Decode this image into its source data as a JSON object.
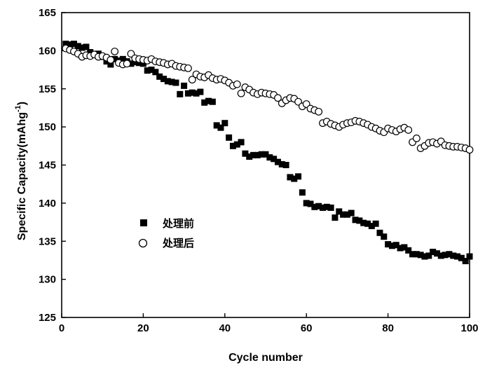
{
  "chart_data": {
    "type": "scatter",
    "xlabel": "Cycle number",
    "ylabel_main": "Specific Capacity(mAhg",
    "ylabel_sup": "-1",
    "ylabel_close": ")",
    "xlim": [
      0,
      100
    ],
    "ylim": [
      125,
      165
    ],
    "xticks": [
      0,
      20,
      40,
      60,
      80,
      100
    ],
    "yticks": [
      125,
      130,
      135,
      140,
      145,
      150,
      155,
      160,
      165
    ],
    "legend_position": "center-left",
    "series": [
      {
        "name": "处理前",
        "marker": "filled-square",
        "color": "#000000",
        "x": [
          1,
          2,
          3,
          4,
          5,
          6,
          7,
          8,
          9,
          10,
          11,
          12,
          13,
          14,
          15,
          16,
          17,
          18,
          19,
          20,
          21,
          22,
          23,
          24,
          25,
          26,
          27,
          28,
          29,
          30,
          31,
          32,
          33,
          34,
          35,
          36,
          37,
          38,
          39,
          40,
          41,
          42,
          43,
          44,
          45,
          46,
          47,
          48,
          49,
          50,
          51,
          52,
          53,
          54,
          55,
          56,
          57,
          58,
          59,
          60,
          61,
          62,
          63,
          64,
          65,
          66,
          67,
          68,
          69,
          70,
          71,
          72,
          73,
          74,
          75,
          76,
          77,
          78,
          79,
          80,
          81,
          82,
          83,
          84,
          85,
          86,
          87,
          88,
          89,
          90,
          91,
          92,
          93,
          94,
          95,
          96,
          97,
          98,
          99,
          100
        ],
        "values": [
          160.9,
          160.8,
          160.9,
          160.6,
          160.4,
          160.5,
          159.8,
          159.5,
          159.6,
          159.2,
          158.6,
          158.2,
          158.9,
          158.7,
          158.9,
          158.6,
          158.3,
          158.5,
          158.4,
          158.3,
          157.4,
          157.5,
          157.2,
          156.6,
          156.3,
          156.0,
          155.9,
          155.8,
          154.3,
          155.4,
          154.4,
          154.5,
          154.4,
          154.6,
          153.2,
          153.4,
          153.3,
          150.2,
          149.9,
          150.5,
          148.6,
          147.5,
          147.7,
          148.0,
          146.5,
          146.1,
          146.3,
          146.3,
          146.4,
          146.4,
          146.0,
          145.8,
          145.4,
          145.1,
          145.0,
          143.4,
          143.2,
          143.5,
          141.4,
          140.0,
          139.9,
          139.5,
          139.6,
          139.4,
          139.5,
          139.4,
          138.1,
          138.9,
          138.5,
          138.5,
          138.7,
          137.8,
          137.7,
          137.4,
          137.3,
          137.0,
          137.3,
          136.1,
          135.6,
          134.6,
          134.4,
          134.5,
          134.1,
          134.2,
          133.8,
          133.3,
          133.3,
          133.2,
          133.0,
          133.1,
          133.6,
          133.4,
          133.1,
          133.2,
          133.3,
          133.1,
          133.0,
          132.8,
          132.4,
          133.0
        ]
      },
      {
        "name": "处理后",
        "marker": "open-circle",
        "color": "#000000",
        "x": [
          1,
          2,
          3,
          4,
          5,
          6,
          7,
          8,
          9,
          10,
          11,
          12,
          13,
          14,
          15,
          16,
          17,
          18,
          19,
          20,
          21,
          22,
          23,
          24,
          25,
          26,
          27,
          28,
          29,
          30,
          31,
          32,
          33,
          34,
          35,
          36,
          37,
          38,
          39,
          40,
          41,
          42,
          43,
          44,
          45,
          46,
          47,
          48,
          49,
          50,
          51,
          52,
          53,
          54,
          55,
          56,
          57,
          58,
          59,
          60,
          61,
          62,
          63,
          64,
          65,
          66,
          67,
          68,
          69,
          70,
          71,
          72,
          73,
          74,
          75,
          76,
          77,
          78,
          79,
          80,
          81,
          82,
          83,
          84,
          85,
          86,
          87,
          88,
          89,
          90,
          91,
          92,
          93,
          94,
          95,
          96,
          97,
          98,
          99,
          100
        ],
        "values": [
          160.3,
          160.1,
          159.9,
          159.6,
          159.2,
          159.4,
          159.3,
          159.5,
          159.2,
          159.3,
          159.1,
          158.8,
          159.9,
          158.4,
          158.2,
          158.3,
          159.6,
          159.0,
          158.9,
          158.8,
          158.7,
          158.9,
          158.6,
          158.5,
          158.4,
          158.2,
          158.3,
          158.0,
          157.9,
          157.8,
          157.7,
          156.2,
          156.9,
          156.6,
          156.5,
          156.8,
          156.4,
          156.2,
          156.3,
          156.1,
          155.8,
          155.4,
          155.6,
          154.4,
          155.2,
          154.9,
          154.5,
          154.3,
          154.5,
          154.4,
          154.3,
          154.2,
          153.8,
          153.1,
          153.5,
          153.8,
          153.7,
          153.3,
          152.7,
          153.0,
          152.4,
          152.2,
          152.0,
          150.5,
          150.7,
          150.4,
          150.2,
          150.0,
          150.3,
          150.5,
          150.6,
          150.8,
          150.7,
          150.5,
          150.3,
          150.0,
          149.8,
          149.5,
          149.3,
          149.8,
          149.6,
          149.4,
          149.7,
          149.9,
          149.6,
          148.0,
          148.5,
          147.2,
          147.5,
          147.9,
          148.0,
          147.8,
          148.1,
          147.6,
          147.5,
          147.4,
          147.4,
          147.3,
          147.2,
          147.0
        ]
      }
    ]
  }
}
